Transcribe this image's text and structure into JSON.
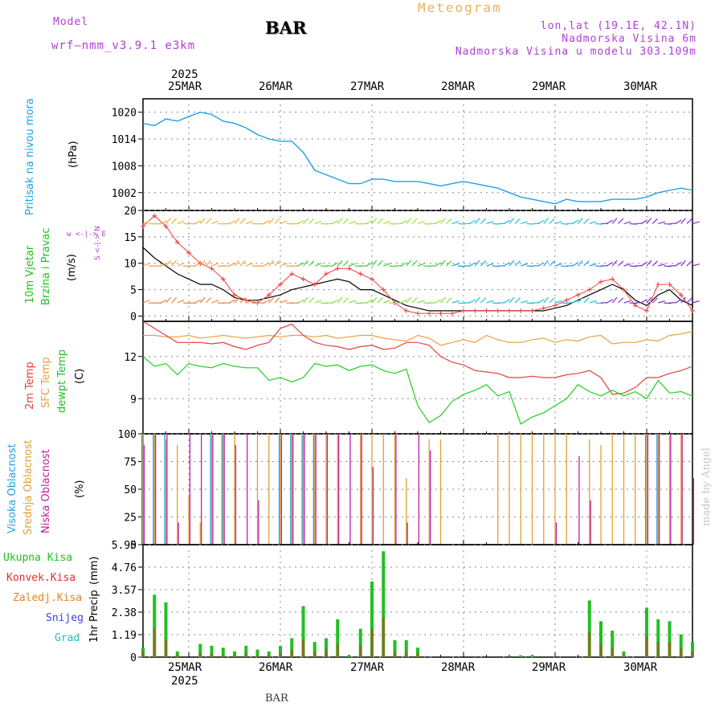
{
  "header": {
    "model_label": "Model",
    "model_name": "wrf—nmm_v3.9.1 e3km",
    "station": "BAR",
    "meteogram_label": "Meteogram",
    "coords": "lon,lat (19.1E, 42.1N)",
    "elevation": "Nadmorska Visina 6m",
    "model_elevation": "Nadmorska Visina u modelu 303.109m"
  },
  "dates": {
    "year": "2025",
    "days": [
      "25MAR",
      "26MAR",
      "27MAR",
      "28MAR",
      "29MAR",
      "30MAR"
    ]
  },
  "panels": {
    "pressure": {
      "label": "Pritisak na nivou mora",
      "unit": "(hPa)"
    },
    "wind": {
      "label1": "10m Vjetar",
      "label2": "Brzina i Pravac",
      "unit": "(m/s)",
      "compass": "w <-|-> E",
      "compass2": "S <-|-> N"
    },
    "temp": {
      "label1": "2m Temp",
      "label2": "SFC Temp",
      "label3": "dewpt Temp",
      "unit": "(C)"
    },
    "cloud": {
      "label1": "Visoka Oblacnost",
      "label2": "Srednja Oblacnost",
      "label3": "Niska Oblacnost",
      "unit": "(%)"
    },
    "precip": {
      "label": "1hr Precip",
      "unit": "(mm)",
      "legend": [
        "Ukupna Kisa",
        "Konvek.Kisa",
        "Zaledj.Kisa",
        "Snijeg",
        "Grad"
      ]
    }
  },
  "footer": {
    "station": "BAR",
    "made_by": "made by Angel"
  },
  "colors": {
    "pressure": "#1ea0e8",
    "temp2m": "#e84040",
    "sfc": "#e8a040",
    "dewpt": "#20d020",
    "high_cloud": "#20a0e0",
    "mid_cloud": "#e0a030",
    "low_cloud": "#c020a0",
    "total_rain": "#20c020",
    "conv_rain": "#e03030",
    "frz_rain": "#f08020",
    "snow": "#4040e0",
    "hail": "#20c0c0",
    "purple": "#b040d8"
  },
  "chart_data": [
    {
      "type": "line",
      "title": "Pritisak na nivou mora",
      "ylabel": "(hPa)",
      "yticks": [
        1002,
        1008,
        1014,
        1020
      ],
      "ylim": [
        998,
        1023
      ],
      "x_hours": [
        0,
        3,
        6,
        9,
        12,
        15,
        18,
        21,
        24,
        27,
        30,
        33,
        36,
        39,
        42,
        45,
        48,
        51,
        54,
        57,
        60,
        63,
        66,
        69,
        72,
        75,
        78,
        81,
        84,
        87,
        90,
        93,
        96,
        99,
        102,
        105,
        108,
        111,
        114,
        117,
        120,
        123,
        126,
        129,
        132,
        135,
        138,
        141,
        144
      ],
      "values": [
        1017.5,
        1017,
        1018.5,
        1018,
        1019,
        1020,
        1019.5,
        1018,
        1017.5,
        1016.5,
        1015,
        1014,
        1013.5,
        1013.5,
        1011,
        1007,
        1006,
        1005,
        1004,
        1004,
        1005,
        1005,
        1004.5,
        1004.5,
        1004.5,
        1004,
        1003.5,
        1004,
        1004.5,
        1004,
        1003.5,
        1003,
        1002,
        1001,
        1000.5,
        1000,
        999.5,
        1000.5,
        1000,
        1000,
        1000,
        1000.5,
        1000.5,
        1000.5,
        1001,
        1002,
        1002.5,
        1003,
        1002.5
      ]
    },
    {
      "type": "line",
      "title": "10m Vjetar Brzina i Pravac",
      "ylabel": "(m/s)",
      "yticks": [
        0,
        5,
        10,
        15,
        20
      ],
      "ylim": [
        -1,
        20
      ],
      "x_hours": [
        0,
        3,
        6,
        9,
        12,
        15,
        18,
        21,
        24,
        27,
        30,
        33,
        36,
        39,
        42,
        45,
        48,
        51,
        54,
        57,
        60,
        63,
        66,
        69,
        72,
        75,
        78,
        81,
        84,
        87,
        90,
        93,
        96,
        99,
        102,
        105,
        108,
        111,
        114,
        117,
        120,
        123,
        126,
        129,
        132,
        135,
        138,
        141,
        144
      ],
      "series": [
        {
          "name": "speed",
          "values": [
            13,
            11,
            9.5,
            8,
            7,
            6,
            6,
            5,
            3.5,
            3,
            3,
            3.5,
            4,
            5,
            5.5,
            6,
            6.5,
            7,
            6.5,
            5,
            5,
            4,
            3,
            2,
            1.5,
            1,
            1,
            1,
            1,
            1,
            1,
            1,
            1,
            1,
            1,
            1,
            1.5,
            2,
            3,
            4,
            5,
            6,
            5,
            3,
            2,
            4,
            5,
            3,
            2
          ]
        },
        {
          "name": "gust",
          "values": [
            17,
            19,
            17,
            14,
            12,
            10,
            9,
            7,
            4,
            3,
            2.5,
            4,
            6,
            8,
            7,
            6,
            8,
            9,
            9,
            8,
            7,
            5,
            2.5,
            1,
            0.5,
            0.5,
            0.5,
            0.5,
            1,
            1,
            1,
            1,
            1,
            1,
            1,
            1.5,
            2,
            3,
            4,
            5,
            6.5,
            7,
            5,
            2,
            1,
            6,
            6,
            4,
            1
          ]
        }
      ]
    },
    {
      "type": "line",
      "title": "2m Temp / SFC Temp / dewpt Temp",
      "ylabel": "(C)",
      "yticks": [
        9,
        12
      ],
      "ylim": [
        6.5,
        14.5
      ],
      "x_hours": [
        0,
        3,
        6,
        9,
        12,
        15,
        18,
        21,
        24,
        27,
        30,
        33,
        36,
        39,
        42,
        45,
        48,
        51,
        54,
        57,
        60,
        63,
        66,
        69,
        72,
        75,
        78,
        81,
        84,
        87,
        90,
        93,
        96,
        99,
        102,
        105,
        108,
        111,
        114,
        117,
        120,
        123,
        126,
        129,
        132,
        135,
        138,
        141,
        144
      ],
      "series": [
        {
          "name": "2m Temp",
          "values": [
            14.5,
            14,
            13.5,
            13,
            13,
            13,
            12.9,
            13,
            12.7,
            12.5,
            12.8,
            13,
            14,
            14.3,
            13.5,
            13,
            12.8,
            12.7,
            12.5,
            12.7,
            12.8,
            12.5,
            12.6,
            13,
            13,
            12.8,
            12,
            11.6,
            11.4,
            11,
            10.9,
            10.8,
            10.5,
            10.5,
            10.6,
            10.5,
            10.5,
            10.7,
            10.8,
            11,
            10.5,
            9.3,
            9.4,
            9.8,
            10.5,
            10.5,
            10.8,
            11,
            11.3
          ]
        },
        {
          "name": "SFC Temp",
          "values": [
            13.5,
            13.5,
            13.4,
            13.4,
            13.5,
            13.3,
            13.4,
            13.5,
            13.4,
            13.3,
            13.4,
            13.5,
            13.4,
            13.5,
            13.5,
            13.4,
            13.5,
            13.3,
            13.4,
            13.5,
            13.5,
            13.3,
            13.2,
            13.1,
            13.5,
            13.3,
            12.8,
            13,
            13.2,
            13,
            13.5,
            13.2,
            13,
            13,
            13.2,
            13.3,
            13,
            13.2,
            13.1,
            13.4,
            13.5,
            12.9,
            13,
            13,
            13.2,
            13.1,
            13.5,
            13.6,
            13.8
          ]
        },
        {
          "name": "dewpt Temp",
          "values": [
            12,
            11.3,
            11.5,
            10.7,
            11.5,
            11.3,
            11.2,
            11.5,
            11.3,
            11.2,
            11.2,
            10.3,
            10.5,
            10.2,
            10.5,
            11.5,
            11.3,
            11.4,
            11,
            11.3,
            11.4,
            11,
            10.8,
            11.1,
            8.5,
            7.3,
            7.8,
            8.8,
            9.3,
            9.6,
            10,
            9.2,
            9.5,
            7.2,
            7.7,
            8,
            8.5,
            9,
            10,
            9.5,
            9.2,
            9.6,
            9.2,
            9.5,
            9,
            10.3,
            9.4,
            9.5,
            9.2
          ]
        }
      ]
    },
    {
      "type": "bar",
      "title": "Oblacnost",
      "ylabel": "(%)",
      "yticks": [
        0,
        25,
        50,
        75,
        100
      ],
      "ylim": [
        0,
        100
      ],
      "x_hours": [
        0,
        3,
        6,
        9,
        12,
        15,
        18,
        21,
        24,
        27,
        30,
        33,
        36,
        39,
        42,
        45,
        48,
        51,
        54,
        57,
        60,
        63,
        66,
        69,
        72,
        75,
        78,
        81,
        84,
        87,
        90,
        93,
        96,
        99,
        102,
        105,
        108,
        111,
        114,
        117,
        120,
        123,
        126,
        129,
        132,
        135,
        138,
        141,
        144
      ],
      "series": [
        {
          "name": "Visoka Oblacnost",
          "values": [
            100,
            100,
            100,
            0,
            0,
            0,
            100,
            100,
            0,
            0,
            0,
            0,
            100,
            100,
            100,
            100,
            0,
            0,
            0,
            0,
            0,
            0,
            0,
            0,
            0,
            0,
            0,
            0,
            0,
            0,
            0,
            0,
            0,
            0,
            0,
            0,
            0,
            0,
            0,
            0,
            0,
            0,
            0,
            0,
            100,
            100,
            0,
            0,
            0
          ]
        },
        {
          "name": "Srednja Oblacnost",
          "values": [
            100,
            100,
            95,
            90,
            45,
            20,
            100,
            100,
            100,
            0,
            100,
            100,
            100,
            100,
            100,
            100,
            100,
            100,
            0,
            100,
            100,
            100,
            100,
            60,
            0,
            95,
            95,
            0,
            0,
            0,
            0,
            100,
            100,
            100,
            100,
            100,
            100,
            100,
            0,
            95,
            90,
            100,
            100,
            100,
            100,
            100,
            100,
            100,
            0
          ]
        },
        {
          "name": "Niska Oblacnost",
          "values": [
            90,
            100,
            100,
            20,
            100,
            100,
            100,
            100,
            90,
            100,
            40,
            0,
            100,
            100,
            100,
            100,
            100,
            100,
            100,
            100,
            70,
            0,
            100,
            20,
            100,
            85,
            0,
            0,
            0,
            0,
            0,
            0,
            0,
            0,
            0,
            0,
            20,
            0,
            80,
            40,
            0,
            0,
            0,
            0,
            100,
            100,
            100,
            100,
            60
          ]
        }
      ]
    },
    {
      "type": "bar",
      "title": "1hr Precip",
      "ylabel": "(mm)",
      "yticks": [
        0,
        1.19,
        2.38,
        3.57,
        4.76,
        5.95
      ],
      "ylim": [
        0,
        5.95
      ],
      "x_hours": [
        0,
        3,
        6,
        9,
        12,
        15,
        18,
        21,
        24,
        27,
        30,
        33,
        36,
        39,
        42,
        45,
        48,
        51,
        54,
        57,
        60,
        63,
        66,
        69,
        72,
        75,
        78,
        81,
        84,
        87,
        90,
        93,
        96,
        99,
        102,
        105,
        108,
        111,
        114,
        117,
        120,
        123,
        126,
        129,
        132,
        135,
        138,
        141,
        144
      ],
      "series": [
        {
          "name": "Ukupna Kisa",
          "values": [
            0.5,
            3.3,
            2.9,
            0.3,
            0,
            0.7,
            0.6,
            0.5,
            0.3,
            0.6,
            0.4,
            0.3,
            0.6,
            1.0,
            2.7,
            0.8,
            1.0,
            2.0,
            0.1,
            1.5,
            4.0,
            5.6,
            0.9,
            0.9,
            0.5,
            0,
            0,
            0,
            0,
            0,
            0,
            0,
            0,
            0.1,
            0.1,
            0,
            0,
            0,
            0,
            3.0,
            1.9,
            1.4,
            0.3,
            0,
            2.6,
            2.0,
            1.9,
            1.2,
            0.8
          ]
        },
        {
          "name": "Konvek.Kisa",
          "values": [
            0.3,
            1.5,
            0.9,
            0.1,
            0,
            0.2,
            0.2,
            0.1,
            0.1,
            0.2,
            0.1,
            0.1,
            0.2,
            0.4,
            0.9,
            0.3,
            0.4,
            0.7,
            0,
            0.6,
            1.5,
            2.1,
            0.3,
            0.3,
            0.2,
            0,
            0,
            0,
            0,
            0,
            0,
            0,
            0,
            0,
            0,
            0,
            0,
            0,
            0,
            1.3,
            0.7,
            0.5,
            0.1,
            0,
            1.1,
            0.8,
            0.8,
            0.5,
            0.3
          ]
        }
      ]
    }
  ]
}
